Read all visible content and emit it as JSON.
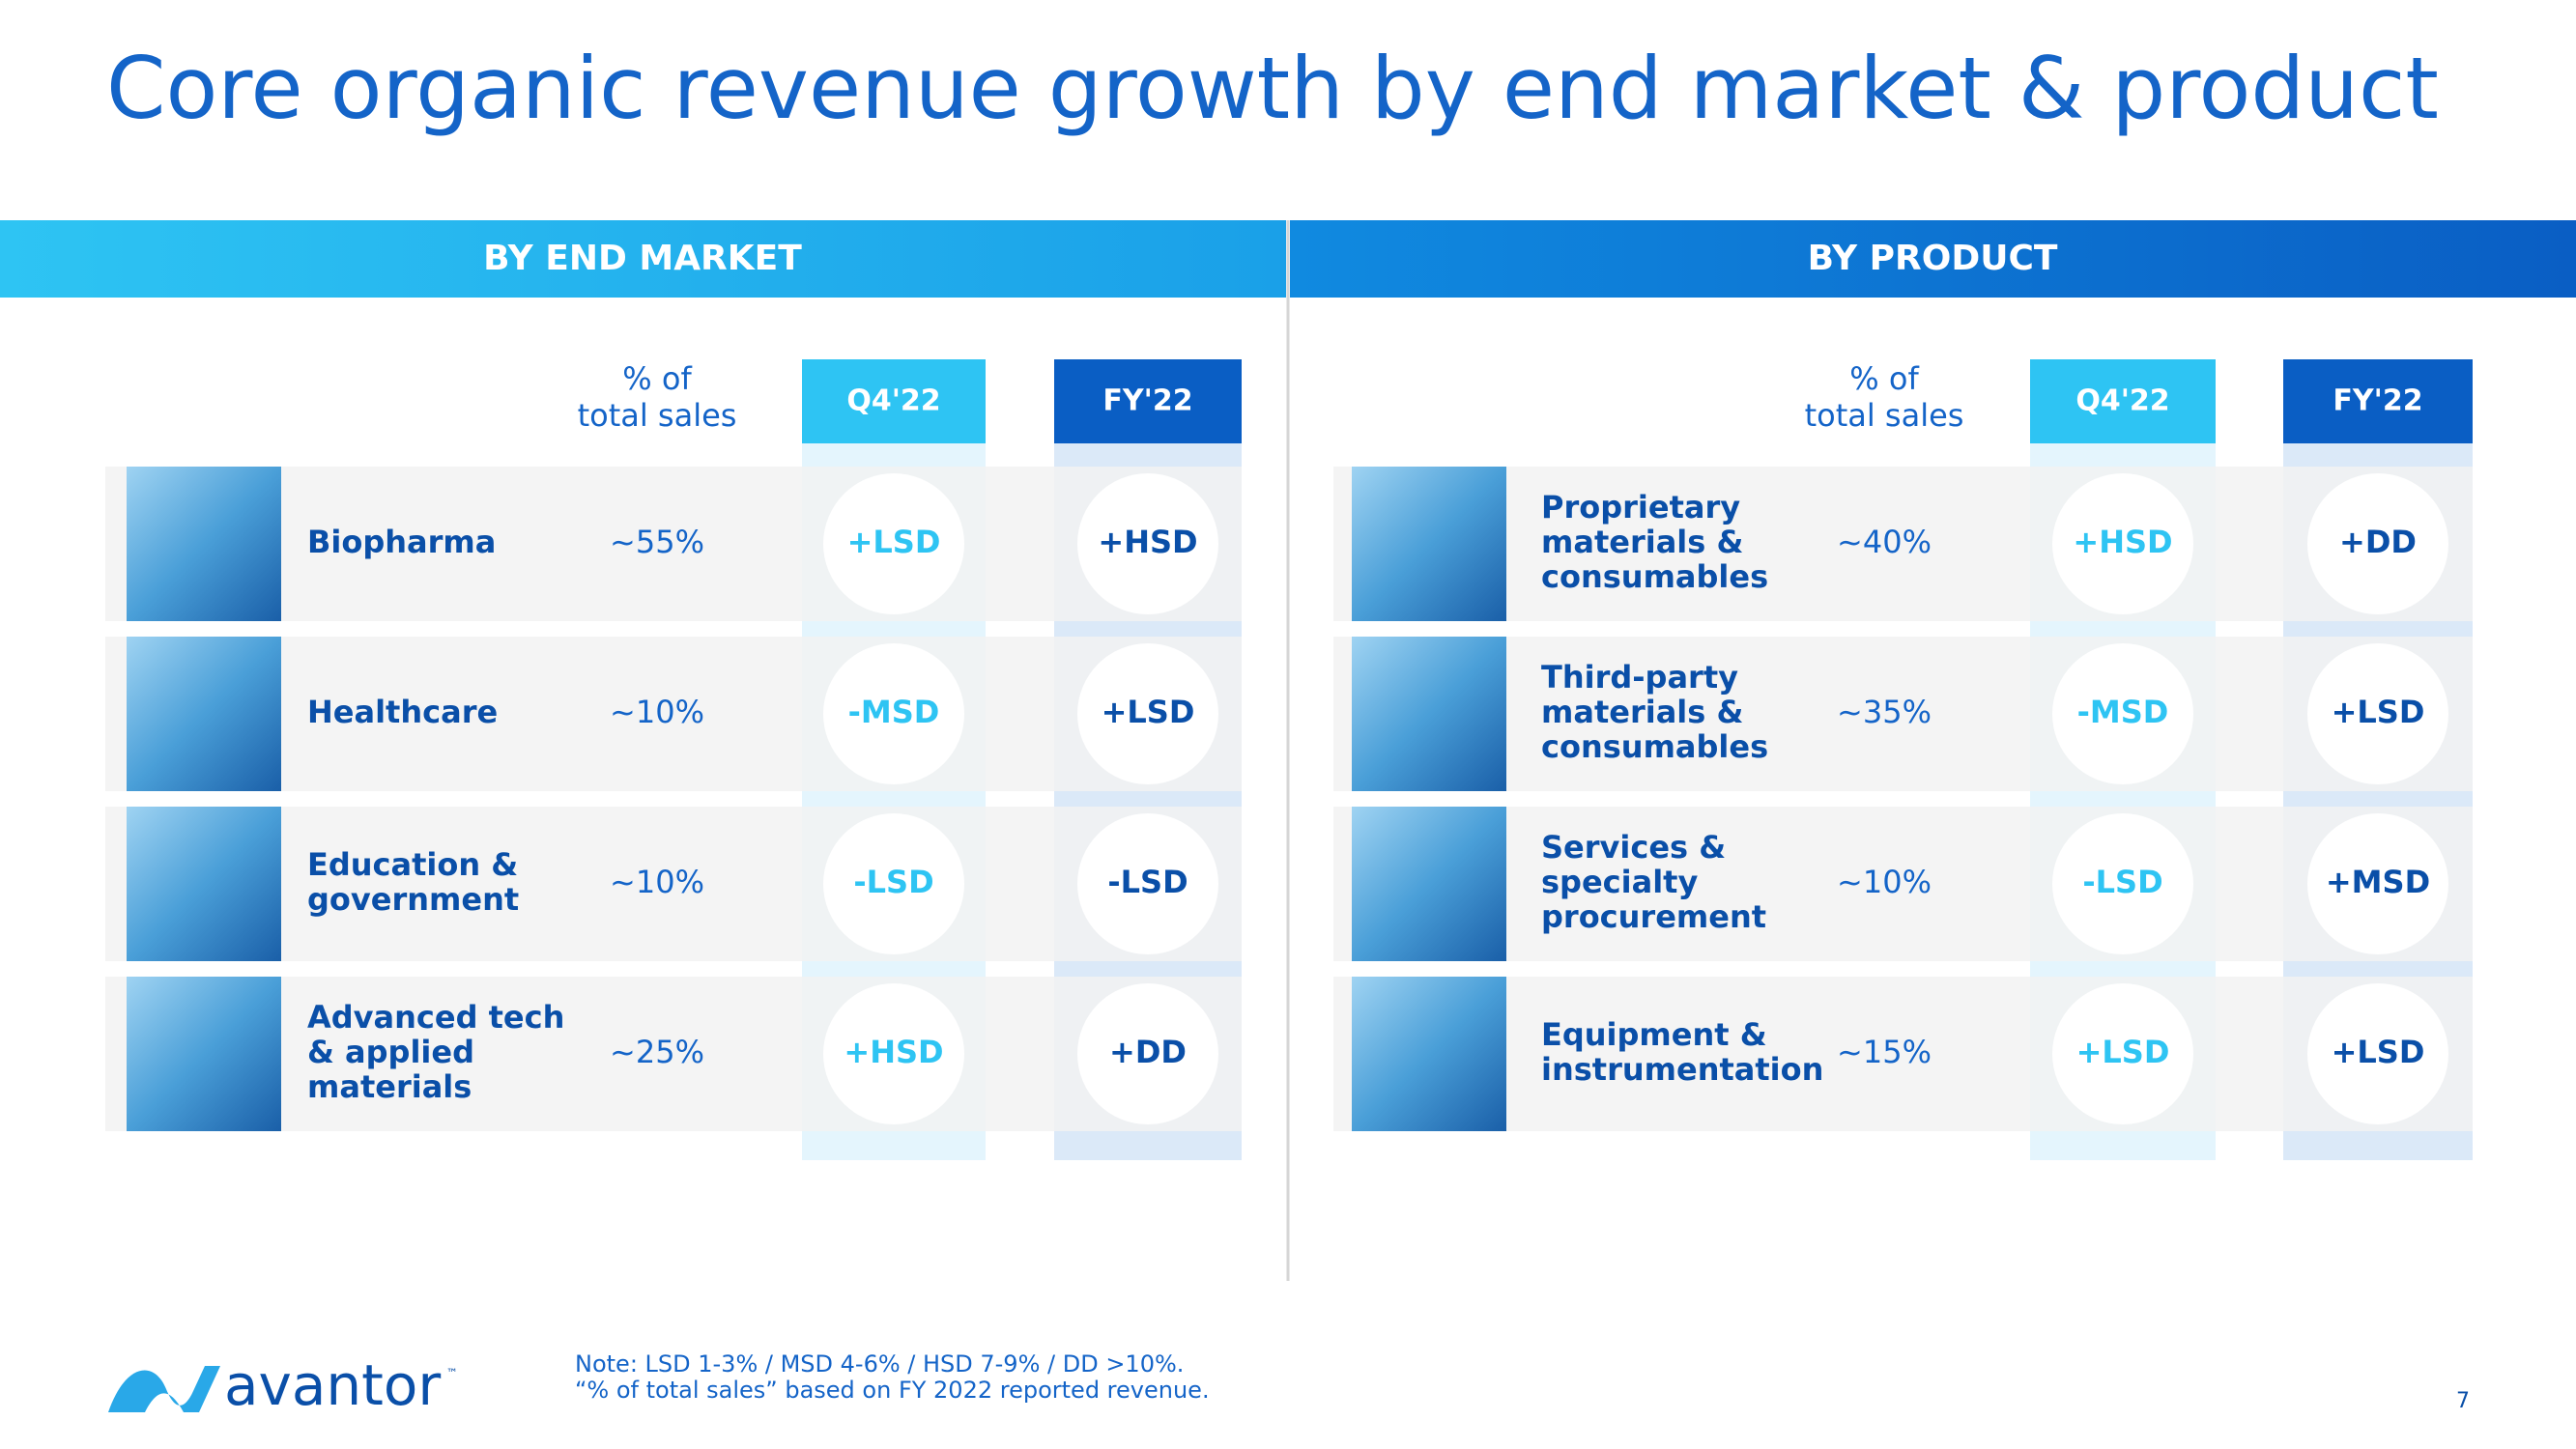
{
  "title": "Core organic revenue growth by end market & product",
  "panels": [
    {
      "heading": "BY END MARKET",
      "pct_header": [
        "% of",
        "total sales"
      ],
      "q4_header": "Q4'22",
      "fy_header": "FY'22",
      "rows": [
        {
          "label": [
            "Biopharma"
          ],
          "pct": "~55%",
          "q4": "+LSD",
          "fy": "+HSD"
        },
        {
          "label": [
            "Healthcare"
          ],
          "pct": "~10%",
          "q4": "-MSD",
          "fy": "+LSD"
        },
        {
          "label": [
            "Education &",
            "government"
          ],
          "pct": "~10%",
          "q4": "-LSD",
          "fy": "-LSD"
        },
        {
          "label": [
            "Advanced tech",
            "& applied",
            "materials"
          ],
          "pct": "~25%",
          "q4": "+HSD",
          "fy": "+DD"
        }
      ]
    },
    {
      "heading": "BY PRODUCT",
      "pct_header": [
        "% of",
        "total sales"
      ],
      "q4_header": "Q4'22",
      "fy_header": "FY'22",
      "rows": [
        {
          "label": [
            "Proprietary",
            "materials &",
            "consumables"
          ],
          "pct": "~40%",
          "q4": "+HSD",
          "fy": "+DD"
        },
        {
          "label": [
            "Third-party",
            "materials &",
            "consumables"
          ],
          "pct": "~35%",
          "q4": "-MSD",
          "fy": "+LSD"
        },
        {
          "label": [
            "Services &",
            "specialty",
            "procurement"
          ],
          "pct": "~10%",
          "q4": "-LSD",
          "fy": "+MSD"
        },
        {
          "label": [
            "Equipment &",
            "instrumentation"
          ],
          "pct": "~15%",
          "q4": "+LSD",
          "fy": "+LSD"
        }
      ]
    }
  ],
  "note": [
    "Note: LSD 1-3% / MSD 4-6% / HSD 7-9% / DD >10%.",
    "“% of total sales” based on FY 2022 reported revenue."
  ],
  "logo": {
    "name": "avantor",
    "tm": "™"
  },
  "page_number": "7"
}
